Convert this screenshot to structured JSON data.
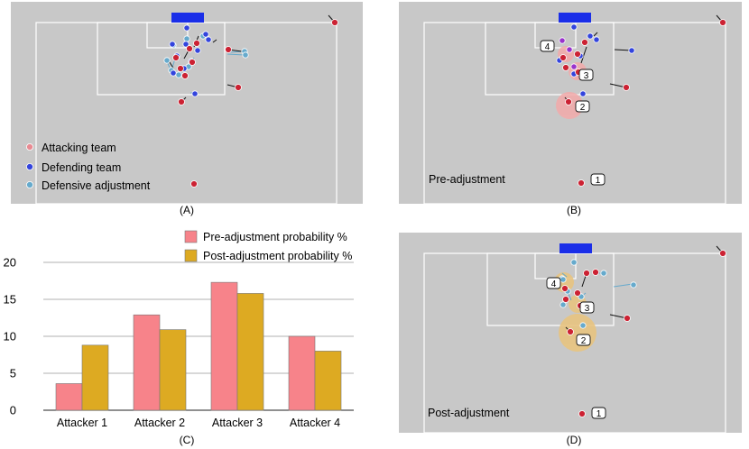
{
  "colors": {
    "attacking": "#cc2233",
    "defending": "#3344dd",
    "adjusted": "#66aacc",
    "pre_bar": "#f7838a",
    "post_bar": "#ddaa22",
    "pitch": "#c8c8c8",
    "pre_halo": "#f3aaaa",
    "post_halo": "#e8c480"
  },
  "panels": {
    "a": {
      "caption": "(A)"
    },
    "b": {
      "caption": "(B)",
      "label": "Pre-adjustment"
    },
    "c": {
      "caption": "(C)"
    },
    "d": {
      "caption": "(D)",
      "label": "Post-adjustment"
    }
  },
  "legend_a": {
    "attacking": "Attacking team",
    "defending": "Defending team",
    "adjustment": "Defensive adjustment"
  },
  "markers": {
    "b": [
      "1",
      "2",
      "3",
      "4"
    ],
    "d": [
      "1",
      "2",
      "3",
      "4"
    ]
  },
  "chart_data": {
    "type": "bar",
    "categories": [
      "Attacker 1",
      "Attacker 2",
      "Attacker 3",
      "Attacker 4"
    ],
    "series": [
      {
        "name": "Pre-adjustment probability %",
        "values": [
          3.6,
          12.9,
          17.3,
          10.0
        ]
      },
      {
        "name": "Post-adjustment probability %",
        "values": [
          8.8,
          10.9,
          15.8,
          8.0
        ]
      }
    ],
    "yticks": [
      "0",
      "5",
      "10",
      "15",
      "20"
    ],
    "ylim": [
      0,
      20
    ],
    "grid": true,
    "legend_placement": "top-right"
  }
}
